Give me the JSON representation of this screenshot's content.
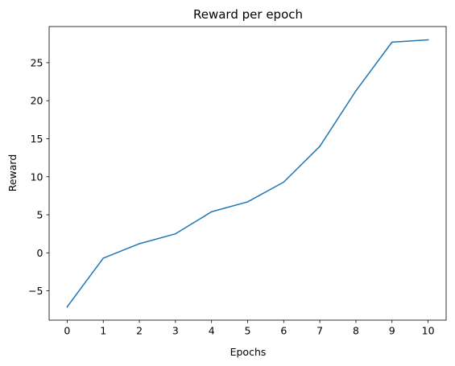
{
  "chart_data": {
    "type": "line",
    "title": "Reward per epoch",
    "xlabel": "Epochs",
    "ylabel": "Reward",
    "x": [
      0,
      1,
      2,
      3,
      4,
      5,
      6,
      7,
      8,
      9,
      10
    ],
    "series": [
      {
        "values": [
          -7.1,
          -0.7,
          1.2,
          2.5,
          5.4,
          6.7,
          9.3,
          14.0,
          21.3,
          27.7,
          28.0
        ],
        "color": "#1f77b4"
      }
    ],
    "x_ticks": [
      0,
      1,
      2,
      3,
      4,
      5,
      6,
      7,
      8,
      9,
      10
    ],
    "x_tick_labels": [
      "0",
      "1",
      "2",
      "3",
      "4",
      "5",
      "6",
      "7",
      "8",
      "9",
      "10"
    ],
    "y_ticks": [
      -5,
      0,
      5,
      10,
      15,
      20,
      25
    ],
    "y_tick_labels": [
      "−5",
      "0",
      "5",
      "10",
      "15",
      "20",
      "25"
    ],
    "xlim": [
      -0.5,
      10.5
    ],
    "ylim": [
      -8.85,
      29.75
    ],
    "grid": false,
    "legend": "none"
  }
}
